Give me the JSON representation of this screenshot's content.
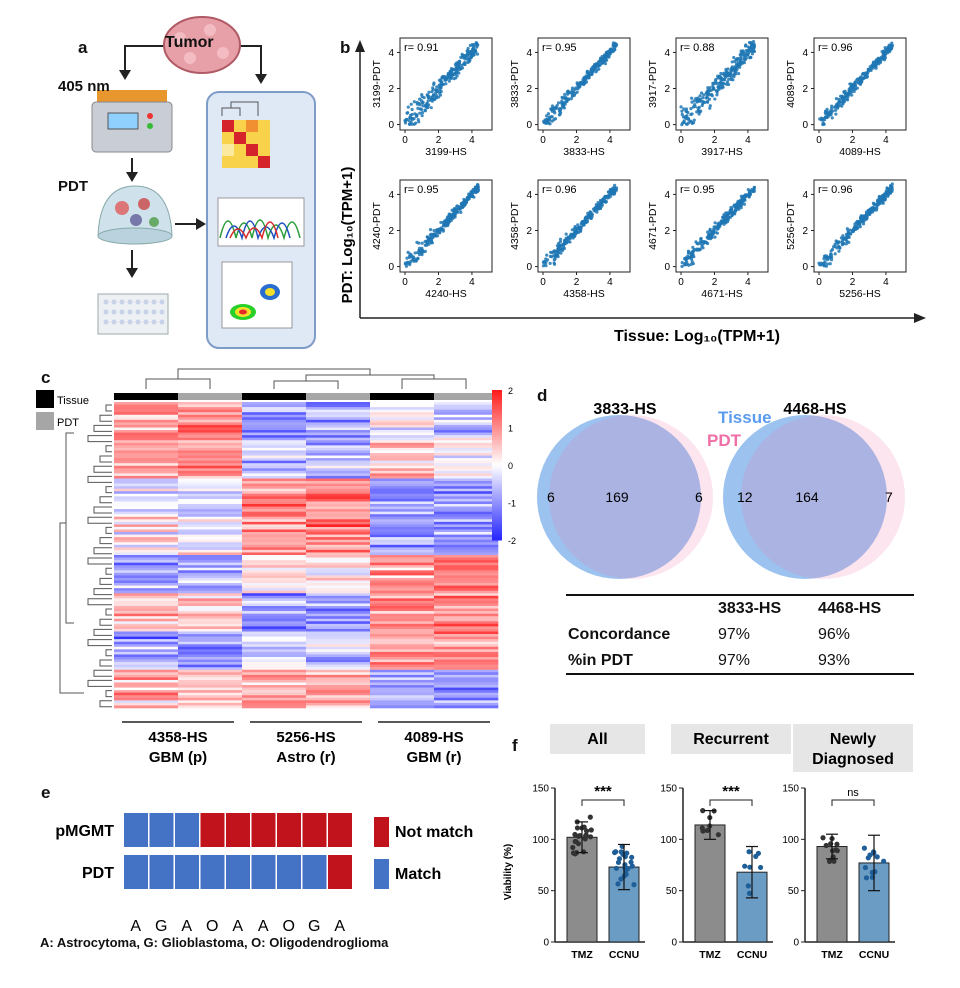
{
  "panel_a": {
    "label": "a",
    "tumor": "Tumor",
    "wavelength": "405 nm",
    "pdt": "PDT"
  },
  "panel_b": {
    "label": "b",
    "y_axis_label": "PDT: Log₁₀(TPM+1)",
    "x_axis_label": "Tissue: Log₁₀(TPM+1)",
    "chart_data": [
      {
        "type": "scatter",
        "sample": "3199",
        "xlabel": "3199-HS",
        "ylabel": "3199-PDT",
        "r": "r= 0.91",
        "xticks": [
          "0",
          "2",
          "4"
        ],
        "yticks": [
          "0",
          "2",
          "4"
        ],
        "xlim": [
          -0.3,
          5.2
        ],
        "ylim": [
          -0.3,
          4.8
        ]
      },
      {
        "type": "scatter",
        "sample": "3833",
        "xlabel": "3833-HS",
        "ylabel": "3833-PDT",
        "r": "r= 0.95",
        "xticks": [
          "0",
          "2",
          "4"
        ],
        "yticks": [
          "0",
          "2",
          "4"
        ],
        "xlim": [
          -0.3,
          5.2
        ],
        "ylim": [
          -0.3,
          4.8
        ]
      },
      {
        "type": "scatter",
        "sample": "3917",
        "xlabel": "3917-HS",
        "ylabel": "3917-PDT",
        "r": "r= 0.88",
        "xticks": [
          "0",
          "2",
          "4"
        ],
        "yticks": [
          "0",
          "2",
          "4"
        ],
        "xlim": [
          -0.3,
          5.2
        ],
        "ylim": [
          -0.3,
          4.8
        ]
      },
      {
        "type": "scatter",
        "sample": "4089",
        "xlabel": "4089-HS",
        "ylabel": "4089-PDT",
        "r": "r= 0.96",
        "xticks": [
          "0",
          "2",
          "4"
        ],
        "yticks": [
          "0",
          "2",
          "4"
        ],
        "xlim": [
          -0.3,
          5.2
        ],
        "ylim": [
          -0.3,
          4.8
        ]
      },
      {
        "type": "scatter",
        "sample": "4240",
        "xlabel": "4240-HS",
        "ylabel": "4240-PDT",
        "r": "r= 0.95",
        "xticks": [
          "0",
          "2",
          "4"
        ],
        "yticks": [
          "0",
          "2",
          "4"
        ],
        "xlim": [
          -0.3,
          5.2
        ],
        "ylim": [
          -0.3,
          4.8
        ]
      },
      {
        "type": "scatter",
        "sample": "4358",
        "xlabel": "4358-HS",
        "ylabel": "4358-PDT",
        "r": "r= 0.96",
        "xticks": [
          "0",
          "2",
          "4"
        ],
        "yticks": [
          "0",
          "2",
          "4"
        ],
        "xlim": [
          -0.3,
          5.2
        ],
        "ylim": [
          -0.3,
          4.8
        ]
      },
      {
        "type": "scatter",
        "sample": "4671",
        "xlabel": "4671-HS",
        "ylabel": "4671-PDT",
        "r": "r= 0.95",
        "xticks": [
          "0",
          "2",
          "4"
        ],
        "yticks": [
          "0",
          "2",
          "4"
        ],
        "xlim": [
          -0.3,
          5.2
        ],
        "ylim": [
          -0.3,
          4.8
        ]
      },
      {
        "type": "scatter",
        "sample": "5256",
        "xlabel": "5256-HS",
        "ylabel": "5256-PDT",
        "r": "r= 0.96",
        "xticks": [
          "0",
          "2",
          "4"
        ],
        "yticks": [
          "0",
          "2",
          "4"
        ],
        "xlim": [
          -0.3,
          5.2
        ],
        "ylim": [
          -0.3,
          4.8
        ]
      }
    ]
  },
  "panel_c": {
    "label": "c",
    "legend": [
      {
        "name": "Tissue",
        "color": "#000000"
      },
      {
        "name": "PDT",
        "color": "#a6a6a6"
      }
    ],
    "colorbar_ticks": [
      "2",
      "1",
      "0",
      "-1",
      "-2"
    ],
    "chart_data": {
      "type": "heatmap",
      "columns": [
        "4358-HS Tissue",
        "4358-HS PDT",
        "5256-HS Tissue",
        "5256-HS PDT",
        "4089-HS Tissue",
        "4089-HS PDT"
      ],
      "scale": [
        -2,
        2
      ]
    },
    "groups": [
      {
        "sample": "4358-HS",
        "diagnosis": "GBM (p)"
      },
      {
        "sample": "5256-HS",
        "diagnosis": "Astro (r)"
      },
      {
        "sample": "4089-HS",
        "diagnosis": "GBM (r)"
      }
    ]
  },
  "panel_d": {
    "label": "d",
    "tissue": "Tissue",
    "pdt": "PDT",
    "venns": [
      {
        "title": "3833-HS",
        "left": "6",
        "center": "169",
        "right": "6"
      },
      {
        "title": "4468-HS",
        "left": "12",
        "center": "164",
        "right": "7"
      }
    ],
    "table": {
      "headers": [
        "",
        "3833-HS",
        "4468-HS"
      ],
      "rows": [
        {
          "label": "Concordance",
          "v1": "97%",
          "v2": "96%"
        },
        {
          "label": "%in PDT",
          "v1": "97%",
          "v2": "93%"
        }
      ]
    },
    "colors": {
      "tissue": "#4a90e2",
      "pdt": "#f06fa6"
    }
  },
  "panel_e": {
    "label": "e",
    "rows": [
      {
        "name": "pMGMT",
        "cells": [
          "Match",
          "Match",
          "Match",
          "Not match",
          "Not match",
          "Not match",
          "Not match",
          "Not match",
          "Not match"
        ]
      },
      {
        "name": "PDT",
        "cells": [
          "Match",
          "Match",
          "Match",
          "Match",
          "Match",
          "Match",
          "Match",
          "Match",
          "Not match"
        ]
      }
    ],
    "letters": [
      "A",
      "G",
      "A",
      "O",
      "A",
      "A",
      "O",
      "G",
      "A"
    ],
    "legend": [
      {
        "name": "Not match",
        "color": "#c0131b"
      },
      {
        "name": "Match",
        "color": "#4472c4"
      }
    ],
    "footnote": "A: Astrocytoma, G: Glioblastoma, O: Oligodendroglioma"
  },
  "panel_f": {
    "label": "f",
    "ylabel": "Viability (%)",
    "chart_data": [
      {
        "type": "bar",
        "title": "All",
        "categories": [
          "TMZ",
          "CCNU"
        ],
        "values": [
          102,
          73
        ],
        "errors": [
          15,
          22
        ],
        "sig": "***",
        "ylim": [
          0,
          150
        ],
        "yticks": [
          "0",
          "50",
          "100",
          "150"
        ]
      },
      {
        "type": "bar",
        "title": "Recurrent",
        "categories": [
          "TMZ",
          "CCNU"
        ],
        "values": [
          114,
          68
        ],
        "errors": [
          14,
          25
        ],
        "sig": "***",
        "ylim": [
          0,
          150
        ],
        "yticks": [
          "0",
          "50",
          "100",
          "150"
        ]
      },
      {
        "type": "bar",
        "title": "Newly Diagnosed",
        "categories": [
          "TMZ",
          "CCNU"
        ],
        "values": [
          93,
          77
        ],
        "errors": [
          12,
          27
        ],
        "sig": "ns",
        "ylim": [
          0,
          150
        ],
        "yticks": [
          "0",
          "50",
          "100",
          "150"
        ]
      }
    ],
    "colors": {
      "tmz": "#8c8c8c",
      "ccnu": "#6a9cc4",
      "dot_tmz": "#333333",
      "dot_ccnu": "#1f5f99"
    }
  }
}
